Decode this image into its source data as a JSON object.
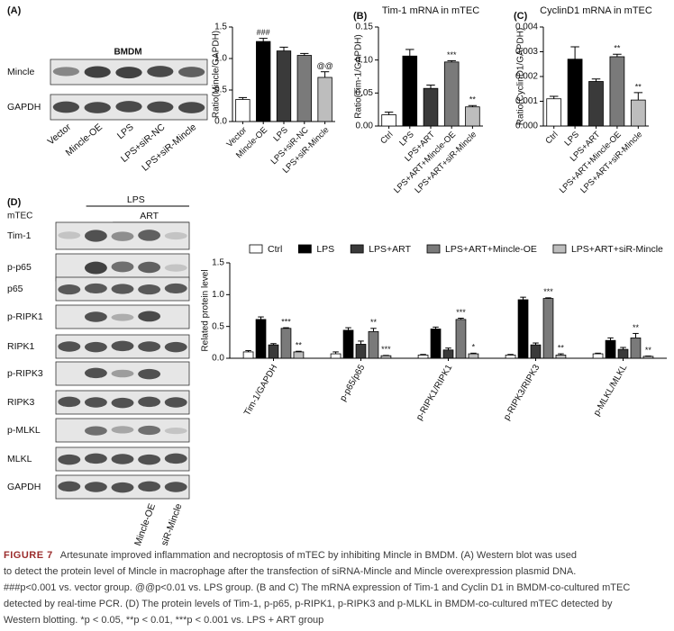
{
  "panels": [
    "(A)",
    "(B)",
    "(C)",
    "(D)"
  ],
  "blots": [
    {
      "title": "BMDM",
      "rows": [
        "Mincle",
        "GAPDH"
      ],
      "lanes": [
        "Vector",
        "Mincle-OE",
        "LPS",
        "LPS+siR-NC",
        "LPS+siR-Mincle"
      ]
    },
    {
      "header": "mTEC",
      "groups": [
        "LPS",
        "ART"
      ],
      "rows": [
        "Tim-1",
        "p-p65",
        "p65",
        "p-RIPK1",
        "RIPK1",
        "p-RIPK3",
        "RIPK3",
        "p-MLKL",
        "MLKL",
        "GAPDH"
      ],
      "lanes": [
        "Mincle-OE",
        "siR-Mincle"
      ]
    }
  ],
  "chart_data": [
    {
      "type": "bar",
      "ylabel": "Ratio(Mincle/GAPDH)",
      "categories": [
        "Vector",
        "Mincle-OE",
        "LPS",
        "LPS+siR-NC",
        "LPS+siR-Mincle"
      ],
      "values": [
        0.35,
        1.27,
        1.12,
        1.05,
        0.7
      ],
      "errors": [
        0.03,
        0.05,
        0.06,
        0.03,
        0.09
      ],
      "annotations": [
        null,
        "###",
        null,
        null,
        "@@"
      ],
      "colors": [
        "#ffffff",
        "#000000",
        "#3a3a3a",
        "#7a7a7a",
        "#bdbdbd"
      ],
      "ylim": [
        0,
        1.5
      ],
      "yticks": [
        {
          "value": 0,
          "label": "0.0"
        },
        {
          "value": 0.5,
          "label": "0.5"
        },
        {
          "value": 1,
          "label": "1.0"
        },
        {
          "value": 1.5,
          "label": "1.5"
        }
      ]
    },
    {
      "type": "bar",
      "title": "Tim-1 mRNA in mTEC",
      "ylabel": "Ratio(Tim-1/GAPDH)",
      "categories": [
        "Ctrl",
        "LPS",
        "LPS+ART",
        "LPS+ART+Mincle-OE",
        "LPS+ART+siR-Mincle"
      ],
      "values": [
        0.017,
        0.106,
        0.057,
        0.097,
        0.029
      ],
      "errors": [
        0.004,
        0.01,
        0.005,
        0.002,
        0.002
      ],
      "annotations": [
        null,
        null,
        null,
        "***",
        "**"
      ],
      "colors": [
        "#ffffff",
        "#000000",
        "#3a3a3a",
        "#7a7a7a",
        "#bdbdbd"
      ],
      "ylim": [
        0,
        0.15
      ],
      "yticks": [
        {
          "value": 0,
          "label": "0.00"
        },
        {
          "value": 0.05,
          "label": "0.05"
        },
        {
          "value": 0.1,
          "label": "0.10"
        },
        {
          "value": 0.15,
          "label": "0.15"
        }
      ]
    },
    {
      "type": "bar",
      "title": "CyclinD1 mRNA in mTEC",
      "ylabel": "Ratio(CyclinD1/GAPDH)",
      "categories": [
        "Ctrl",
        "LPS",
        "LPS+ART",
        "LPS+ART+Mincle-OE",
        "LPS+ART+siR-Mincle"
      ],
      "values": [
        0.0011,
        0.0027,
        0.0018,
        0.0028,
        0.00105
      ],
      "errors": [
        0.0001,
        0.0005,
        0.0001,
        0.0001,
        0.0003
      ],
      "annotations": [
        null,
        null,
        null,
        "**",
        "**"
      ],
      "colors": [
        "#ffffff",
        "#000000",
        "#3a3a3a",
        "#7a7a7a",
        "#bdbdbd"
      ],
      "ylim": [
        0,
        0.004
      ],
      "yticks": [
        {
          "value": 0,
          "label": "0.000"
        },
        {
          "value": 0.001,
          "label": "0.001"
        },
        {
          "value": 0.002,
          "label": "0.002"
        },
        {
          "value": 0.003,
          "label": "0.003"
        },
        {
          "value": 0.004,
          "label": "0.004"
        }
      ]
    },
    {
      "type": "grouped_bar",
      "ylabel": "Related protein level",
      "categories": [
        "Tim-1/GAPDH",
        "p-p65/p65",
        "p-RIPK1/RIPK1",
        "p-RIPK3/RIPK3",
        "p-MLKL/MLKL"
      ],
      "series": [
        {
          "name": "Ctrl",
          "color": "#ffffff",
          "values": [
            0.1,
            0.07,
            0.05,
            0.05,
            0.07
          ],
          "errors": [
            0.02,
            0.03,
            0.01,
            0.01,
            0.01
          ],
          "annotations": [
            null,
            null,
            null,
            null,
            null
          ]
        },
        {
          "name": "LPS",
          "color": "#000000",
          "values": [
            0.61,
            0.44,
            0.46,
            0.92,
            0.28
          ],
          "errors": [
            0.04,
            0.04,
            0.03,
            0.04,
            0.04
          ],
          "annotations": [
            null,
            null,
            null,
            null,
            null
          ]
        },
        {
          "name": "LPS+ART",
          "color": "#3a3a3a",
          "values": [
            0.21,
            0.22,
            0.13,
            0.21,
            0.14
          ],
          "errors": [
            0.02,
            0.05,
            0.03,
            0.03,
            0.03
          ],
          "annotations": [
            null,
            null,
            null,
            null,
            null
          ]
        },
        {
          "name": "LPS+ART+Mincle-OE",
          "color": "#7a7a7a",
          "values": [
            0.47,
            0.42,
            0.61,
            0.94,
            0.32
          ],
          "errors": [
            0.01,
            0.05,
            0.02,
            0.01,
            0.07
          ],
          "annotations": [
            "***",
            "**",
            "***",
            "***",
            "**"
          ]
        },
        {
          "name": "LPS+ART+siR-Mincle",
          "color": "#bdbdbd",
          "values": [
            0.1,
            0.04,
            0.07,
            0.05,
            0.03
          ],
          "errors": [
            0.01,
            0.005,
            0.01,
            0.02,
            0.005
          ],
          "annotations": [
            "**",
            "***",
            "*",
            "**",
            "**"
          ]
        }
      ],
      "ylim": [
        0,
        1.5
      ],
      "yticks": [
        {
          "value": 0,
          "label": "0.0"
        },
        {
          "value": 0.5,
          "label": "0.5"
        },
        {
          "value": 1,
          "label": "1.0"
        },
        {
          "value": 1.5,
          "label": "1.5"
        }
      ]
    }
  ],
  "caption": {
    "label": "FIGURE 7",
    "lines": [
      "Artesunate improved inflammation and necroptosis of mTEC by inhibiting Mincle in BMDM. (A) Western blot was used",
      "to detect the protein level of Mincle in macrophage after the transfection of siRNA-Mincle and Mincle overexpression plasmid DNA.",
      "###p<0.001 vs. vector group. @@p<0.01 vs. LPS group. (B and C) The mRNA expression of Tim-1 and Cyclin D1 in BMDM-co-cultured mTEC",
      "detected by real-time PCR. (D) The protein levels of Tim-1, p-p65, p-RIPK1, p-RIPK3 and p-MLKL in BMDM-co-cultured mTEC detected by",
      "Western blotting. *p < 0.05, **p < 0.01, ***p < 0.001 vs. LPS + ART group"
    ]
  }
}
